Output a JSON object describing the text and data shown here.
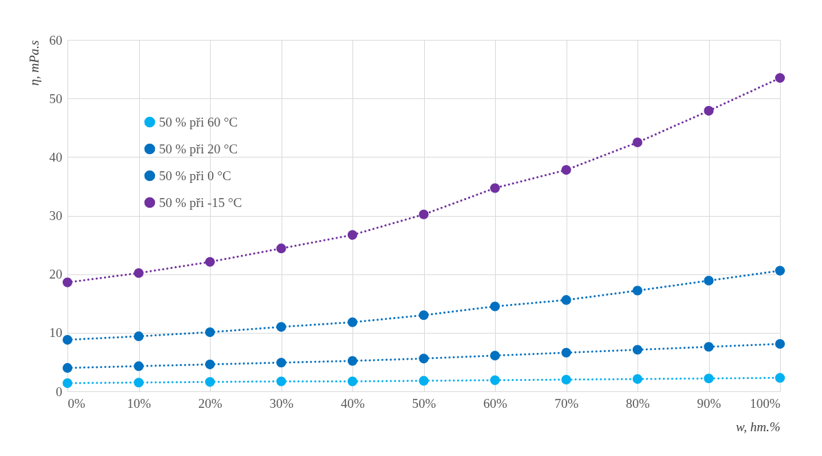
{
  "chart_data": {
    "type": "line",
    "xlabel": "w, hm.%",
    "ylabel": "η, mPa.s",
    "x": [
      0,
      10,
      20,
      30,
      40,
      50,
      60,
      70,
      80,
      90,
      100
    ],
    "xlim": [
      0,
      100
    ],
    "xticks": [
      {
        "value": 0,
        "label": "0%"
      },
      {
        "value": 10,
        "label": "10%"
      },
      {
        "value": 20,
        "label": "20%"
      },
      {
        "value": 30,
        "label": "30%"
      },
      {
        "value": 40,
        "label": "40%"
      },
      {
        "value": 50,
        "label": "50%"
      },
      {
        "value": 60,
        "label": "60%"
      },
      {
        "value": 70,
        "label": "70%"
      },
      {
        "value": 80,
        "label": "80%"
      },
      {
        "value": 90,
        "label": "90%"
      },
      {
        "value": 100,
        "label": "100%"
      }
    ],
    "ylim": [
      0,
      60
    ],
    "yticks": [
      0,
      10,
      20,
      30,
      40,
      50,
      60
    ],
    "series": [
      {
        "name": "50 % při 60 °C",
        "color": "#00b0f0",
        "values": [
          1.4,
          1.5,
          1.6,
          1.7,
          1.7,
          1.8,
          1.9,
          2.0,
          2.1,
          2.2,
          2.3
        ]
      },
      {
        "name": "50 % při 20 °C",
        "color": "#0070c0",
        "values": [
          4.0,
          4.3,
          4.6,
          4.9,
          5.2,
          5.6,
          6.1,
          6.6,
          7.1,
          7.6,
          8.1
        ]
      },
      {
        "name": "50 % při 0 °C",
        "color": "#0070c0",
        "values": [
          8.8,
          9.4,
          10.1,
          11.0,
          11.8,
          13.0,
          14.5,
          15.6,
          17.2,
          18.9,
          20.6
        ]
      },
      {
        "name": "50 % při -15 °C",
        "color": "#7030a0",
        "values": [
          18.6,
          20.2,
          22.1,
          24.4,
          26.7,
          30.2,
          34.7,
          37.8,
          42.5,
          47.9,
          53.5
        ]
      }
    ],
    "grid": true,
    "legend": "top left",
    "marker": "circle",
    "line_style": "dotted"
  }
}
